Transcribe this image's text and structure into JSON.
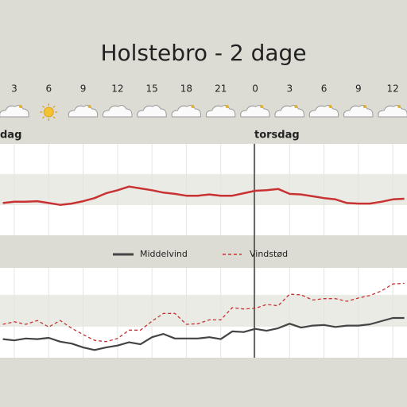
{
  "title": "Holstebro - 2 dage",
  "days": [
    "dag",
    "torsdag"
  ],
  "chart_data": [
    {
      "type": "line",
      "x": [
        2,
        3,
        4,
        5,
        6,
        7,
        8,
        9,
        10,
        11,
        12,
        13,
        14,
        15,
        16,
        17,
        18,
        19,
        20,
        21,
        22,
        23,
        24,
        25,
        26,
        27,
        28,
        29,
        30,
        31,
        32,
        33,
        34,
        35,
        36,
        37
      ],
      "xlim": [
        2,
        37
      ],
      "xticks": [
        3,
        6,
        9,
        12,
        15,
        18,
        21,
        {
          "value": 24,
          "label": "0"
        },
        {
          "value": 27,
          "label": "3"
        },
        {
          "value": 30,
          "label": "6"
        },
        {
          "value": 33,
          "label": "9"
        },
        {
          "value": 36,
          "label": "12"
        }
      ],
      "ylim": [
        0,
        15
      ],
      "series": [
        {
          "color": "#c83232",
          "values": [
            5.3,
            5.5,
            5.5,
            5.6,
            5.3,
            5.0,
            5.2,
            5.6,
            6.1,
            6.9,
            7.4,
            8.0,
            7.7,
            7.4,
            7.0,
            6.8,
            6.5,
            6.5,
            6.7,
            6.5,
            6.5,
            6.9,
            7.3,
            7.4,
            7.6,
            6.8,
            6.7,
            6.4,
            6.1,
            5.9,
            5.3,
            5.2,
            5.2,
            5.5,
            5.9,
            6.0
          ]
        }
      ]
    },
    {
      "type": "line",
      "x": [
        2,
        3,
        4,
        5,
        6,
        7,
        8,
        9,
        10,
        11,
        12,
        13,
        14,
        15,
        16,
        17,
        18,
        19,
        20,
        21,
        22,
        23,
        24,
        25,
        26,
        27,
        28,
        29,
        30,
        31,
        32,
        33,
        34,
        35,
        36,
        37
      ],
      "xlim": [
        2,
        37
      ],
      "ylim": [
        0,
        14
      ],
      "series": [
        {
          "name": "Middelvind",
          "color": "#444444",
          "values": [
            2.9,
            2.7,
            3.0,
            2.9,
            3.1,
            2.5,
            2.2,
            1.6,
            1.2,
            1.6,
            1.9,
            2.4,
            2.1,
            3.2,
            3.7,
            3.0,
            3.0,
            3.0,
            3.2,
            2.9,
            4.1,
            4.0,
            4.5,
            4.2,
            4.6,
            5.3,
            4.7,
            5.0,
            5.1,
            4.8,
            5.0,
            5.0,
            5.2,
            5.7,
            6.2,
            6.2
          ]
        },
        {
          "name": "Vindstød",
          "color": "#c83232",
          "dashed": true,
          "values": [
            5.2,
            5.6,
            5.2,
            5.8,
            4.8,
            5.8,
            4.6,
            3.6,
            2.7,
            2.5,
            3.0,
            4.3,
            4.3,
            5.7,
            6.9,
            6.9,
            5.2,
            5.3,
            5.9,
            5.9,
            7.8,
            7.6,
            7.7,
            8.3,
            8.1,
            9.9,
            9.8,
            9.0,
            9.2,
            9.2,
            8.8,
            9.3,
            9.7,
            10.4,
            11.5,
            11.6
          ]
        }
      ]
    }
  ]
}
